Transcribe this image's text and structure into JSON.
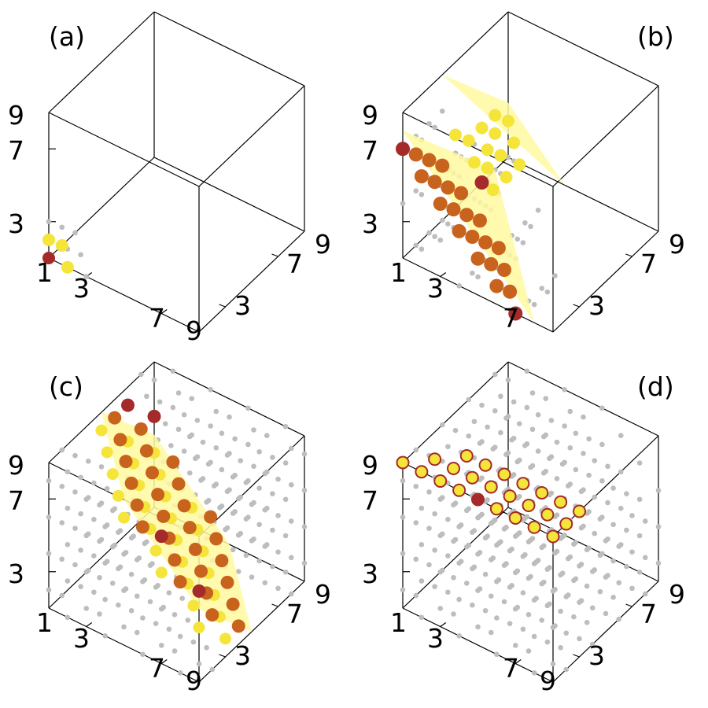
{
  "colors": {
    "red": "#a52a2a",
    "yellow": "#f5e43a",
    "orange": "#c8631e",
    "gray": "#bdbdbd",
    "plane": "#fff9a0",
    "edge": "#000000"
  },
  "chart_data": [
    {
      "type": "scatter3d",
      "panel_label": "(a)",
      "axes": {
        "x_ticks": [
          "1",
          "3",
          "7",
          "9"
        ],
        "y_ticks": [
          "3",
          "7",
          "9"
        ],
        "z_ticks": [
          "3",
          "7",
          "9"
        ],
        "range": [
          1,
          9
        ]
      },
      "series": [
        {
          "color": "red",
          "points": [
            [
              1,
              1,
              1
            ]
          ]
        },
        {
          "color": "yellow",
          "points": [
            [
              2,
              1,
              1
            ],
            [
              1,
              2,
              1
            ],
            [
              1,
              1,
              2
            ]
          ]
        },
        {
          "color": "gray",
          "points": [
            [
              2,
              2,
              1
            ],
            [
              2,
              1,
              2
            ],
            [
              1,
              2,
              2
            ],
            [
              3,
              1,
              1
            ],
            [
              1,
              3,
              1
            ],
            [
              1,
              1,
              3
            ]
          ]
        }
      ]
    },
    {
      "type": "scatter3d",
      "panel_label": "(b)",
      "axes": {
        "x_ticks": [
          "1",
          "3",
          "7"
        ],
        "y_ticks": [
          "3",
          "7",
          "9"
        ],
        "z_ticks": [
          "3",
          "7",
          "9"
        ],
        "range": [
          1,
          9
        ]
      },
      "series": [
        {
          "color": "red",
          "points": [
            [
              1,
              1,
              7
            ],
            [
              7,
              1,
              1
            ],
            [
              1,
              7,
              1
            ]
          ]
        },
        {
          "color": "orange",
          "points": [
            [
              2,
              1,
              6
            ],
            [
              3,
              1,
              5
            ],
            [
              4,
              1,
              4
            ],
            [
              5,
              1,
              3
            ],
            [
              6,
              1,
              2
            ],
            [
              1,
              2,
              6
            ],
            [
              2,
              2,
              5
            ],
            [
              3,
              2,
              4
            ],
            [
              4,
              2,
              3
            ],
            [
              5,
              2,
              2
            ],
            [
              6,
              2,
              1
            ],
            [
              1,
              3,
              5
            ],
            [
              2,
              3,
              4
            ],
            [
              3,
              3,
              3
            ],
            [
              4,
              3,
              2
            ],
            [
              5,
              3,
              1
            ],
            [
              1,
              4,
              4
            ],
            [
              2,
              4,
              3
            ],
            [
              3,
              4,
              2
            ],
            [
              4,
              4,
              1
            ]
          ]
        },
        {
          "color": "yellow",
          "points": [
            [
              1,
              5,
              3
            ],
            [
              2,
              5,
              2
            ],
            [
              3,
              5,
              1
            ],
            [
              1,
              6,
              2
            ],
            [
              2,
              6,
              1
            ],
            [
              1,
              8,
              1
            ],
            [
              2,
              7,
              1
            ],
            [
              1,
              7,
              2
            ],
            [
              1,
              8,
              2
            ],
            [
              2,
              8,
              1
            ],
            [
              3,
              7,
              1
            ],
            [
              1,
              9,
              1
            ],
            [
              2,
              6,
              2
            ],
            [
              3,
              6,
              1
            ]
          ]
        },
        {
          "color": "gray",
          "points": "background lattice"
        }
      ]
    },
    {
      "type": "scatter3d",
      "panel_label": "(c)",
      "axes": {
        "x_ticks": [
          "1",
          "3",
          "7",
          "9"
        ],
        "y_ticks": [
          "3",
          "7",
          "9"
        ],
        "z_ticks": [
          "3",
          "7",
          "9"
        ],
        "range": [
          1,
          9
        ]
      },
      "series": [
        {
          "color": "red",
          "points": "plane x+y+z=16"
        },
        {
          "color": "orange",
          "points": "plane x+y+z=15"
        },
        {
          "color": "yellow",
          "points": "plane x+y+z=14"
        },
        {
          "color": "gray",
          "points": "background lattice"
        }
      ]
    },
    {
      "type": "scatter3d",
      "panel_label": "(d)",
      "axes": {
        "x_ticks": [
          "1",
          "3",
          "7",
          "9"
        ],
        "y_ticks": [
          "3",
          "7",
          "9"
        ],
        "z_ticks": [
          "3",
          "7",
          "9"
        ],
        "range": [
          1,
          9
        ]
      },
      "series": [
        {
          "color": "red",
          "points": [
            [
              9,
              1,
              9
            ]
          ]
        },
        {
          "color": "yellow-ringed",
          "points": "plane x+z=18 row"
        },
        {
          "color": "gray",
          "points": "background lattice"
        }
      ]
    }
  ]
}
